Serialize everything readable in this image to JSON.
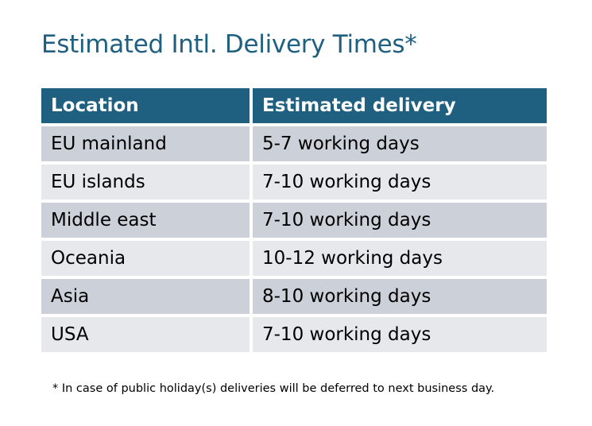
{
  "title": "Estimated Intl. Delivery Times*",
  "table": {
    "headers": [
      "Location",
      "Estimated delivery"
    ],
    "rows": [
      [
        "EU mainland",
        "5-7 working days"
      ],
      [
        "EU islands",
        "7-10 working days"
      ],
      [
        "Middle east",
        "7-10 working days"
      ],
      [
        "Oceania",
        "10-12 working days"
      ],
      [
        "Asia",
        "8-10 working days"
      ],
      [
        "USA",
        "7-10 working days"
      ]
    ]
  },
  "footnote": "* In case of public holiday(s) deliveries will be deferred to next business day.",
  "colors": {
    "header": "#1f5f80",
    "row_dark": "#ccd0d8",
    "row_light": "#e6e8eb"
  }
}
